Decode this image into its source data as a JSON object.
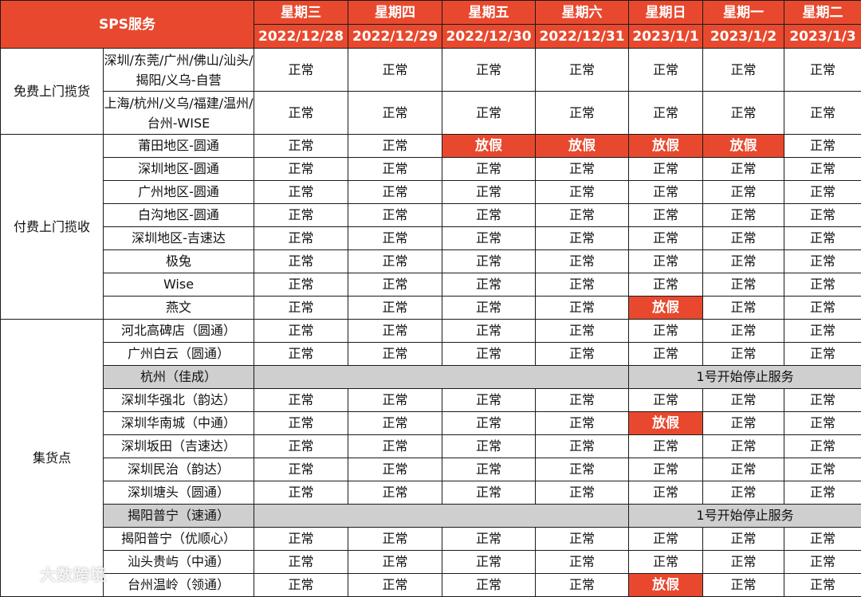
{
  "header": {
    "service_label": "SPS服务",
    "days": [
      {
        "weekday": "星期三",
        "date": "2022/12/28"
      },
      {
        "weekday": "星期四",
        "date": "2022/12/29"
      },
      {
        "weekday": "星期五",
        "date": "2022/12/30"
      },
      {
        "weekday": "星期六",
        "date": "2022/12/31"
      },
      {
        "weekday": "星期日",
        "date": "2023/1/1"
      },
      {
        "weekday": "星期一",
        "date": "2023/1/2"
      },
      {
        "weekday": "星期二",
        "date": "2023/1/3"
      }
    ]
  },
  "categories": {
    "free_pickup": "免费上门揽货",
    "paid_pickup": "付费上门揽收",
    "collection": "集货点"
  },
  "rows": {
    "free": [
      {
        "name": "深圳/东莞/广州/佛山/汕头/揭阳/义乌-自营",
        "cells": [
          "正常",
          "正常",
          "正常",
          "正常",
          "正常",
          "正常",
          "正常"
        ]
      },
      {
        "name": "上海/杭州/义乌/福建/温州/台州-WISE",
        "cells": [
          "正常",
          "正常",
          "正常",
          "正常",
          "正常",
          "正常",
          "正常"
        ]
      }
    ],
    "paid": [
      {
        "name": "莆田地区-圆通",
        "cells": [
          "正常",
          "正常",
          "放假",
          "放假",
          "放假",
          "放假",
          "正常"
        ]
      },
      {
        "name": "深圳地区-圆通",
        "cells": [
          "正常",
          "正常",
          "正常",
          "正常",
          "正常",
          "正常",
          "正常"
        ]
      },
      {
        "name": "广州地区-圆通",
        "cells": [
          "正常",
          "正常",
          "正常",
          "正常",
          "正常",
          "正常",
          "正常"
        ]
      },
      {
        "name": "白沟地区-圆通",
        "cells": [
          "正常",
          "正常",
          "正常",
          "正常",
          "正常",
          "正常",
          "正常"
        ]
      },
      {
        "name": "深圳地区-吉速达",
        "cells": [
          "正常",
          "正常",
          "正常",
          "正常",
          "正常",
          "正常",
          "正常"
        ]
      },
      {
        "name": "极兔",
        "cells": [
          "正常",
          "正常",
          "正常",
          "正常",
          "正常",
          "正常",
          "正常"
        ]
      },
      {
        "name": "Wise",
        "cells": [
          "正常",
          "正常",
          "正常",
          "正常",
          "正常",
          "正常",
          "正常"
        ]
      },
      {
        "name": "燕文",
        "cells": [
          "正常",
          "正常",
          "正常",
          "正常",
          "放假",
          "正常",
          "正常"
        ]
      }
    ],
    "collection": [
      {
        "name": "河北高碑店（圆通）",
        "cells": [
          "正常",
          "正常",
          "正常",
          "正常",
          "正常",
          "正常",
          "正常"
        ]
      },
      {
        "name": "广州白云（圆通）",
        "cells": [
          "正常",
          "正常",
          "正常",
          "正常",
          "正常",
          "正常",
          "正常"
        ]
      },
      {
        "name": "杭州（佳成）",
        "stop_notice": "1号开始停止服务"
      },
      {
        "name": "深圳华强北（韵达）",
        "cells": [
          "正常",
          "正常",
          "正常",
          "正常",
          "正常",
          "正常",
          "正常"
        ]
      },
      {
        "name": "深圳华南城（中通）",
        "cells": [
          "正常",
          "正常",
          "正常",
          "正常",
          "放假",
          "正常",
          "正常"
        ]
      },
      {
        "name": "深圳坂田（吉速达）",
        "cells": [
          "正常",
          "正常",
          "正常",
          "正常",
          "正常",
          "正常",
          "正常"
        ]
      },
      {
        "name": "深圳民治（韵达）",
        "cells": [
          "正常",
          "正常",
          "正常",
          "正常",
          "正常",
          "正常",
          "正常"
        ]
      },
      {
        "name": "深圳塘头（圆通）",
        "cells": [
          "正常",
          "正常",
          "正常",
          "正常",
          "正常",
          "正常",
          "正常"
        ]
      },
      {
        "name": "揭阳普宁（速通）",
        "stop_notice": "1号开始停止服务"
      },
      {
        "name": "揭阳普宁（优顺心）",
        "cells": [
          "正常",
          "正常",
          "正常",
          "正常",
          "正常",
          "正常",
          "正常"
        ]
      },
      {
        "name": "汕头贵屿（中通）",
        "cells": [
          "正常",
          "正常",
          "正常",
          "正常",
          "正常",
          "正常",
          "正常"
        ]
      },
      {
        "name": "台州温岭（领通）",
        "cells": [
          "正常",
          "正常",
          "正常",
          "正常",
          "放假",
          "正常",
          "正常"
        ]
      }
    ]
  },
  "holiday_value": "放假",
  "colors": {
    "accent": "#e8492e",
    "gray_row": "#cfcfcf"
  },
  "watermark": "大数跨境"
}
